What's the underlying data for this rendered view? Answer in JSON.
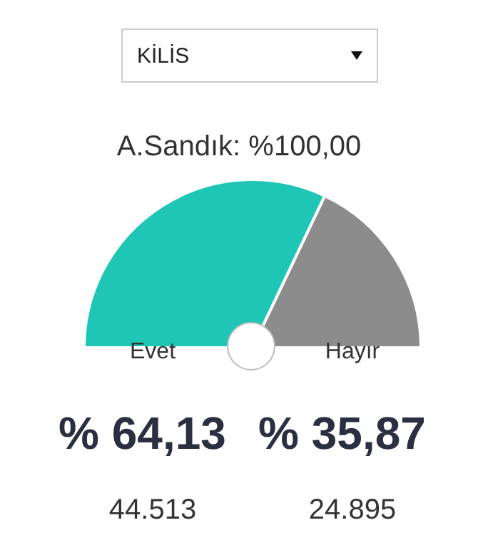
{
  "chart_data": {
    "type": "pie",
    "title": "A.Sandık: %100,00",
    "categories": [
      "Evet",
      "Hayır"
    ],
    "values": [
      64.13,
      35.87
    ],
    "colors": [
      "#1fc6b6",
      "#8c8c8c"
    ],
    "value_labels": [
      "% 64,13",
      "% 35,87"
    ],
    "annotations": [
      "KİLİS",
      "44.513",
      "24.895"
    ]
  }
}
